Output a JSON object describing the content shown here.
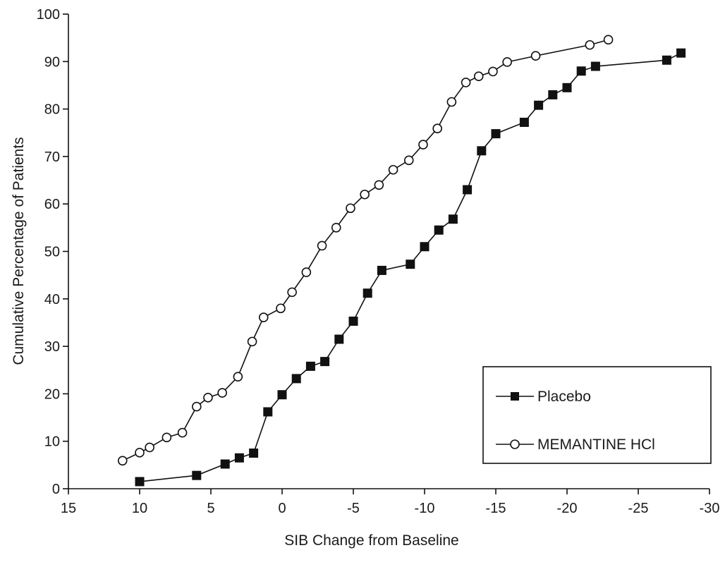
{
  "chart_data": {
    "type": "line",
    "xlabel": "SIB Change from Baseline",
    "ylabel": "Cumulative Percentage of Patients",
    "xlim": [
      15,
      -30
    ],
    "ylim": [
      0,
      100
    ],
    "x_ticks": [
      15,
      10,
      5,
      0,
      -5,
      -10,
      -15,
      -20,
      -25,
      -30
    ],
    "x_tick_labels": [
      "15",
      "10",
      "5",
      "0",
      "-5",
      "-10",
      "-15",
      "-20",
      "-25",
      "-30"
    ],
    "y_ticks": [
      0,
      10,
      20,
      30,
      40,
      50,
      60,
      70,
      80,
      90,
      100
    ],
    "y_tick_labels": [
      "0",
      "10",
      "20",
      "30",
      "40",
      "50",
      "60",
      "70",
      "80",
      "90",
      "100"
    ],
    "grid": false,
    "legend_position": "bottom-right",
    "series": [
      {
        "name": "Placebo",
        "marker": "filled-square",
        "color": "#111111",
        "points": [
          [
            10,
            1.5
          ],
          [
            6,
            2.8
          ],
          [
            4,
            5.2
          ],
          [
            3,
            6.5
          ],
          [
            2,
            7.5
          ],
          [
            1,
            16.2
          ],
          [
            0,
            19.8
          ],
          [
            -1,
            23.2
          ],
          [
            -2,
            25.8
          ],
          [
            -3,
            26.8
          ],
          [
            -4,
            31.5
          ],
          [
            -5,
            35.3
          ],
          [
            -6,
            41.2
          ],
          [
            -7,
            46
          ],
          [
            -9,
            47.3
          ],
          [
            -10,
            51
          ],
          [
            -11,
            54.5
          ],
          [
            -12,
            56.8
          ],
          [
            -13,
            63
          ],
          [
            -14,
            71.2
          ],
          [
            -15,
            74.8
          ],
          [
            -17,
            77.2
          ],
          [
            -18,
            80.8
          ],
          [
            -19,
            83
          ],
          [
            -20,
            84.5
          ],
          [
            -21,
            88
          ],
          [
            -22,
            89
          ],
          [
            -27,
            90.3
          ],
          [
            -28,
            91.8
          ]
        ]
      },
      {
        "name": "MEMANTINE HCl",
        "marker": "open-circle",
        "color": "#111111",
        "points": [
          [
            11.2,
            5.9
          ],
          [
            10,
            7.6
          ],
          [
            9.3,
            8.7
          ],
          [
            8.1,
            10.8
          ],
          [
            7,
            11.8
          ],
          [
            6,
            17.3
          ],
          [
            5.2,
            19.2
          ],
          [
            4.2,
            20.2
          ],
          [
            3.1,
            23.6
          ],
          [
            2.1,
            31
          ],
          [
            1.3,
            36.1
          ],
          [
            0.1,
            38
          ],
          [
            -0.7,
            41.4
          ],
          [
            -1.7,
            45.6
          ],
          [
            -2.8,
            51.2
          ],
          [
            -3.8,
            55
          ],
          [
            -4.8,
            59.1
          ],
          [
            -5.8,
            62
          ],
          [
            -6.8,
            64
          ],
          [
            -7.8,
            67.2
          ],
          [
            -8.9,
            69.2
          ],
          [
            -9.9,
            72.5
          ],
          [
            -10.9,
            75.9
          ],
          [
            -11.9,
            81.5
          ],
          [
            -12.9,
            85.6
          ],
          [
            -13.8,
            86.9
          ],
          [
            -14.8,
            87.9
          ],
          [
            -15.8,
            89.9
          ],
          [
            -17.8,
            91.2
          ],
          [
            -21.6,
            93.5
          ],
          [
            -22.9,
            94.6
          ]
        ]
      }
    ]
  }
}
